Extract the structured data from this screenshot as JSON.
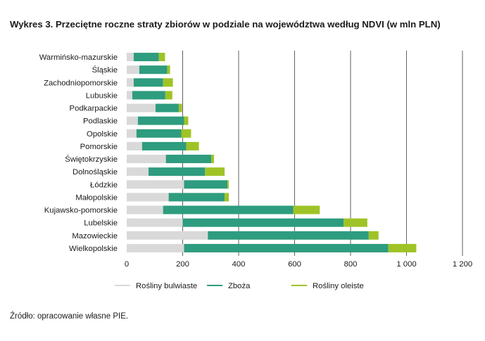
{
  "title": "Wykres 3.  Przeciętne roczne straty zbiorów w podziale na województwa według NDVI (w mln PLN)",
  "source": "Źródło: opracowanie własne PIE.",
  "colors": {
    "series": [
      "#d9d9d9",
      "#2e9c7e",
      "#9fc326"
    ],
    "grid": "#3a3a3a"
  },
  "chart_data": {
    "type": "bar",
    "orientation": "horizontal",
    "stacked": true,
    "title": "Wykres 3.  Przeciętne roczne straty zbiorów w podziale na województwa według NDVI (w mln PLN)",
    "categories": [
      "Warmińsko-mazurskie",
      "Śląskie",
      "Zachodniopomorskie",
      "Lubuskie",
      "Podkarpackie",
      "Podlaskie",
      "Opolskie",
      "Pomorskie",
      "Świętokrzyskie",
      "Dolnośląskie",
      "Łódzkie",
      "Małopolskie",
      "Kujawsko-pomorskie",
      "Lubelskie",
      "Mazowieckie",
      "Wielkopolskie"
    ],
    "series": [
      {
        "name": "Rośliny bulwiaste",
        "values": [
          25,
          45,
          25,
          20,
          103,
          40,
          35,
          55,
          140,
          78,
          205,
          150,
          130,
          200,
          290,
          205
        ]
      },
      {
        "name": "Zboża",
        "values": [
          90,
          100,
          105,
          118,
          83,
          165,
          160,
          158,
          162,
          202,
          155,
          200,
          465,
          575,
          575,
          730
        ]
      },
      {
        "name": "Rośliny oleiste",
        "values": [
          22,
          10,
          35,
          25,
          12,
          15,
          35,
          45,
          10,
          70,
          5,
          15,
          95,
          85,
          35,
          100
        ]
      }
    ],
    "xlim": [
      0,
      1200
    ],
    "xticks": [
      0,
      200,
      400,
      600,
      800,
      1000,
      1200
    ],
    "xtick_labels": [
      "0",
      "200",
      "400",
      "600",
      "800",
      "1 000",
      "1 200"
    ],
    "grid": true,
    "legend": "bottom"
  }
}
